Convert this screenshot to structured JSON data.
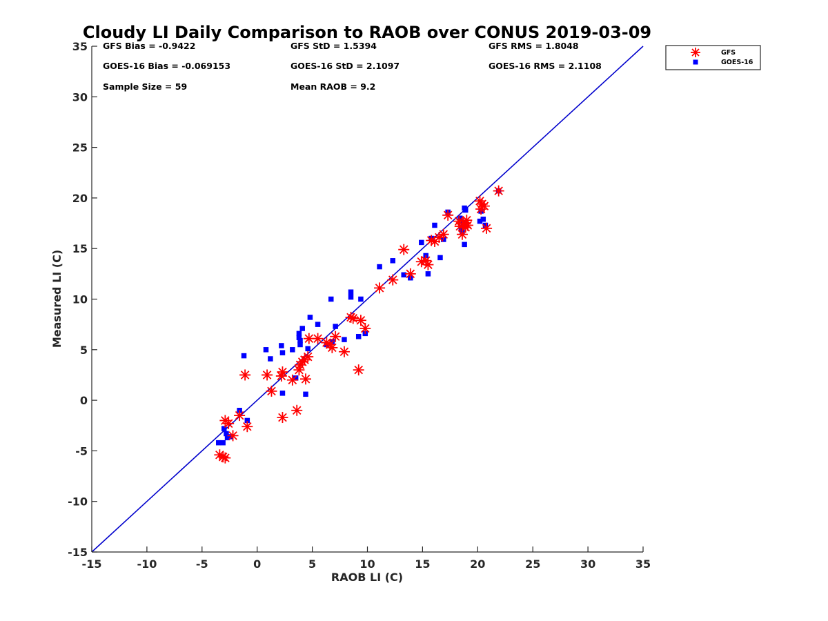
{
  "chart_data": {
    "type": "scatter",
    "title": "Cloudy LI Daily Comparison to RAOB over CONUS 2019-03-09",
    "xlabel": "RAOB LI (C)",
    "ylabel": "Measured LI (C)",
    "xlim": [
      -15,
      35
    ],
    "ylim": [
      -15,
      35
    ],
    "xticks": [
      "-15",
      "-10",
      "-5",
      "0",
      "5",
      "10",
      "15",
      "20",
      "25",
      "30",
      "35"
    ],
    "yticks": [
      "-15",
      "-10",
      "-5",
      "0",
      "5",
      "10",
      "15",
      "20",
      "25",
      "30",
      "35"
    ],
    "grid": false,
    "legend_position": "outside top-right",
    "reference_line": {
      "from": [
        -15,
        -15
      ],
      "to": [
        35,
        35
      ],
      "color": "#0000cc"
    },
    "stats": [
      {
        "text": "GFS Bias = -0.9422",
        "column": 0,
        "row": 0
      },
      {
        "text": "GFS StD = 1.5394",
        "column": 1,
        "row": 0
      },
      {
        "text": "GFS RMS = 1.8048",
        "column": 2,
        "row": 0
      },
      {
        "text": "GOES-16 Bias = -0.069153",
        "column": 0,
        "row": 1
      },
      {
        "text": "GOES-16 StD = 2.1097",
        "column": 1,
        "row": 1
      },
      {
        "text": "GOES-16 RMS = 2.1108",
        "column": 2,
        "row": 1
      },
      {
        "text": "Sample Size = 59",
        "column": 0,
        "row": 2
      },
      {
        "text": "Mean RAOB = 9.2",
        "column": 1,
        "row": 2
      }
    ],
    "series": [
      {
        "name": "GFS",
        "marker": "asterisk",
        "color": "#ff0000",
        "points": [
          [
            -3.4,
            -5.4
          ],
          [
            -3.1,
            -5.6
          ],
          [
            -2.9,
            -5.7
          ],
          [
            -2.9,
            -2.0
          ],
          [
            -2.6,
            -2.3
          ],
          [
            -2.2,
            -3.5
          ],
          [
            -1.6,
            -1.5
          ],
          [
            -0.9,
            -2.6
          ],
          [
            -1.1,
            2.5
          ],
          [
            0.9,
            2.5
          ],
          [
            1.3,
            0.9
          ],
          [
            2.2,
            2.4
          ],
          [
            2.3,
            -1.7
          ],
          [
            2.3,
            2.8
          ],
          [
            3.2,
            2.0
          ],
          [
            3.6,
            -1.0
          ],
          [
            3.8,
            3.0
          ],
          [
            3.9,
            3.5
          ],
          [
            4.1,
            3.8
          ],
          [
            4.3,
            4.0
          ],
          [
            4.4,
            2.1
          ],
          [
            4.6,
            4.3
          ],
          [
            4.7,
            6.1
          ],
          [
            5.5,
            6.1
          ],
          [
            6.3,
            5.7
          ],
          [
            6.6,
            5.5
          ],
          [
            6.8,
            5.2
          ],
          [
            7.1,
            6.3
          ],
          [
            7.9,
            4.8
          ],
          [
            8.5,
            8.2
          ],
          [
            8.7,
            8.1
          ],
          [
            9.2,
            3.0
          ],
          [
            9.4,
            7.9
          ],
          [
            9.8,
            7.1
          ],
          [
            11.1,
            11.1
          ],
          [
            12.3,
            11.9
          ],
          [
            13.3,
            14.9
          ],
          [
            13.9,
            12.5
          ],
          [
            14.9,
            13.7
          ],
          [
            15.3,
            13.8
          ],
          [
            15.5,
            13.4
          ],
          [
            15.8,
            15.8
          ],
          [
            16.1,
            15.7
          ],
          [
            16.5,
            16.1
          ],
          [
            16.9,
            16.4
          ],
          [
            17.3,
            18.3
          ],
          [
            18.4,
            17.2
          ],
          [
            18.6,
            16.4
          ],
          [
            18.7,
            17.5
          ],
          [
            18.9,
            17.1
          ],
          [
            19.0,
            17.8
          ],
          [
            19.1,
            17.3
          ],
          [
            20.2,
            19.7
          ],
          [
            20.3,
            18.9
          ],
          [
            20.4,
            19.4
          ],
          [
            20.6,
            19.2
          ],
          [
            20.8,
            17.0
          ],
          [
            21.9,
            20.7
          ],
          [
            18.3,
            17.7
          ]
        ]
      },
      {
        "name": "GOES-16",
        "marker": "square",
        "color": "#0000ff",
        "points": [
          [
            -3.5,
            -4.2
          ],
          [
            -3.1,
            -4.2
          ],
          [
            -3.0,
            -2.8
          ],
          [
            -2.8,
            -3.3
          ],
          [
            -2.7,
            -3.7
          ],
          [
            -2.4,
            -3.6
          ],
          [
            -1.6,
            -1.0
          ],
          [
            -0.9,
            -2.0
          ],
          [
            -1.2,
            4.4
          ],
          [
            0.8,
            5.0
          ],
          [
            1.2,
            4.1
          ],
          [
            2.2,
            5.4
          ],
          [
            2.3,
            4.7
          ],
          [
            2.3,
            0.7
          ],
          [
            3.2,
            5.0
          ],
          [
            3.5,
            2.2
          ],
          [
            3.8,
            6.6
          ],
          [
            3.8,
            6.2
          ],
          [
            3.9,
            5.9
          ],
          [
            3.9,
            5.5
          ],
          [
            4.1,
            7.1
          ],
          [
            4.4,
            0.6
          ],
          [
            4.6,
            5.1
          ],
          [
            4.8,
            8.2
          ],
          [
            5.5,
            7.5
          ],
          [
            6.3,
            5.5
          ],
          [
            6.7,
            10.0
          ],
          [
            6.8,
            5.8
          ],
          [
            7.1,
            7.3
          ],
          [
            7.9,
            6.0
          ],
          [
            8.5,
            10.7
          ],
          [
            8.5,
            10.2
          ],
          [
            9.2,
            6.3
          ],
          [
            9.4,
            10.0
          ],
          [
            9.8,
            6.6
          ],
          [
            11.1,
            13.2
          ],
          [
            12.3,
            13.8
          ],
          [
            13.3,
            12.4
          ],
          [
            13.9,
            12.1
          ],
          [
            14.9,
            15.6
          ],
          [
            15.3,
            14.3
          ],
          [
            15.5,
            12.5
          ],
          [
            15.8,
            16.0
          ],
          [
            16.1,
            17.3
          ],
          [
            16.6,
            14.1
          ],
          [
            16.9,
            15.9
          ],
          [
            17.3,
            18.6
          ],
          [
            18.4,
            18.0
          ],
          [
            18.5,
            17.0
          ],
          [
            18.6,
            16.7
          ],
          [
            18.8,
            15.4
          ],
          [
            18.8,
            19.0
          ],
          [
            18.9,
            18.8
          ],
          [
            20.2,
            17.7
          ],
          [
            20.3,
            18.7
          ],
          [
            20.5,
            17.9
          ],
          [
            20.7,
            17.3
          ],
          [
            21.9,
            20.7
          ],
          [
            18.7,
            17.5
          ]
        ]
      }
    ]
  }
}
